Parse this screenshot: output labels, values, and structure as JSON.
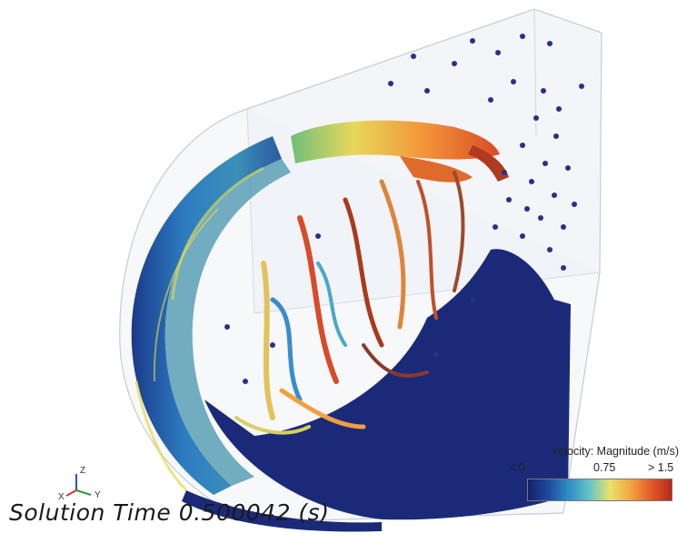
{
  "simulation": {
    "solution_time_text": "Solution Time 0.500042 (s)",
    "particle_colorscale": [
      "#141f6b",
      "#1f4a9c",
      "#2f8fc6",
      "#66c3c9",
      "#e9e36a",
      "#f4a542",
      "#e25a28",
      "#b52a1b"
    ]
  },
  "axes_triad": {
    "z_label": "Z",
    "x_label": "X",
    "y_label": "Y",
    "z_color": "#3a4db0",
    "x_color": "#d03a2a",
    "y_color": "#2a9a3a"
  },
  "legend": {
    "title": "Velocity: Magnitude (m/s)",
    "min_label": "< 0",
    "mid_label": "0.75",
    "max_label": "> 1.5",
    "colors": [
      "#141f6b",
      "#1f4a9c",
      "#2f8fc6",
      "#66c3c9",
      "#e9e36a",
      "#f4a542",
      "#e25a28",
      "#b52a1b"
    ]
  }
}
